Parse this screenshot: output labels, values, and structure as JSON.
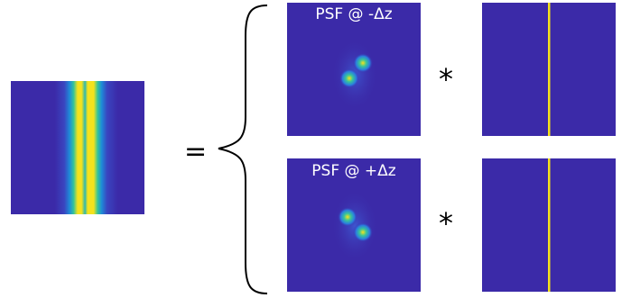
{
  "panels": {
    "result": {
      "description_icon": "double-vertical-line-image"
    },
    "psf_minus": {
      "label": "PSF @ -Δz"
    },
    "psf_plus": {
      "label": "PSF @ +Δz"
    }
  },
  "operators": {
    "equals": "=",
    "convolve_top": "*",
    "convolve_bottom": "*"
  },
  "colors": {
    "background": "#3b2aa8",
    "line": "#f5e21a",
    "hot": "#f7e11c"
  }
}
